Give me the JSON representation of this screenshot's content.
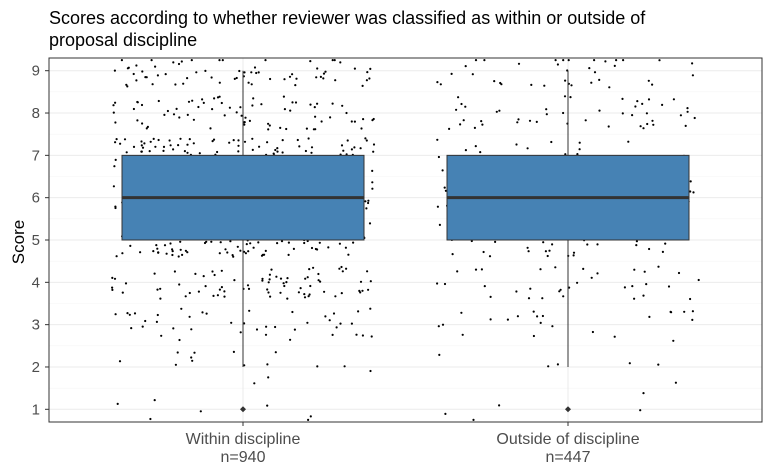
{
  "chart_data": {
    "type": "box",
    "title_lines": [
      "Scores according to whether reviewer was classified as within or outside of",
      "proposal discipline"
    ],
    "xlabel": "",
    "ylabel": "Score",
    "ylim": [
      0.7,
      9.3
    ],
    "yticks": [
      1,
      2,
      3,
      4,
      5,
      6,
      7,
      8,
      9
    ],
    "yticks_labels": [
      "1",
      "2",
      "3",
      "4",
      "5",
      "6",
      "7",
      "8",
      "9"
    ],
    "grid": true,
    "categories": [
      {
        "name": "Within discipline",
        "n_label": "n=940"
      },
      {
        "name": "Outside of discipline",
        "n_label": "n=447"
      }
    ],
    "boxes": [
      {
        "category": "Within discipline",
        "min": 2,
        "q1": 5,
        "median": 6,
        "q3": 7,
        "max": 9,
        "outliers": [
          1
        ],
        "n": 940
      },
      {
        "category": "Outside of discipline",
        "min": 2,
        "q1": 5,
        "median": 6,
        "q3": 7,
        "max": 9,
        "outliers": [
          1
        ],
        "n": 447
      }
    ],
    "jitter_points": "individual scores (1–9) jittered around each box",
    "colors": {
      "box_fill": "#4682b4",
      "box_border": "#333333",
      "median": "#333333",
      "whisker": "#333333",
      "points": "#000000",
      "grid_major": "#ebebeb",
      "grid_minor": "#f5f5f5",
      "panel_border": "#333333"
    }
  }
}
